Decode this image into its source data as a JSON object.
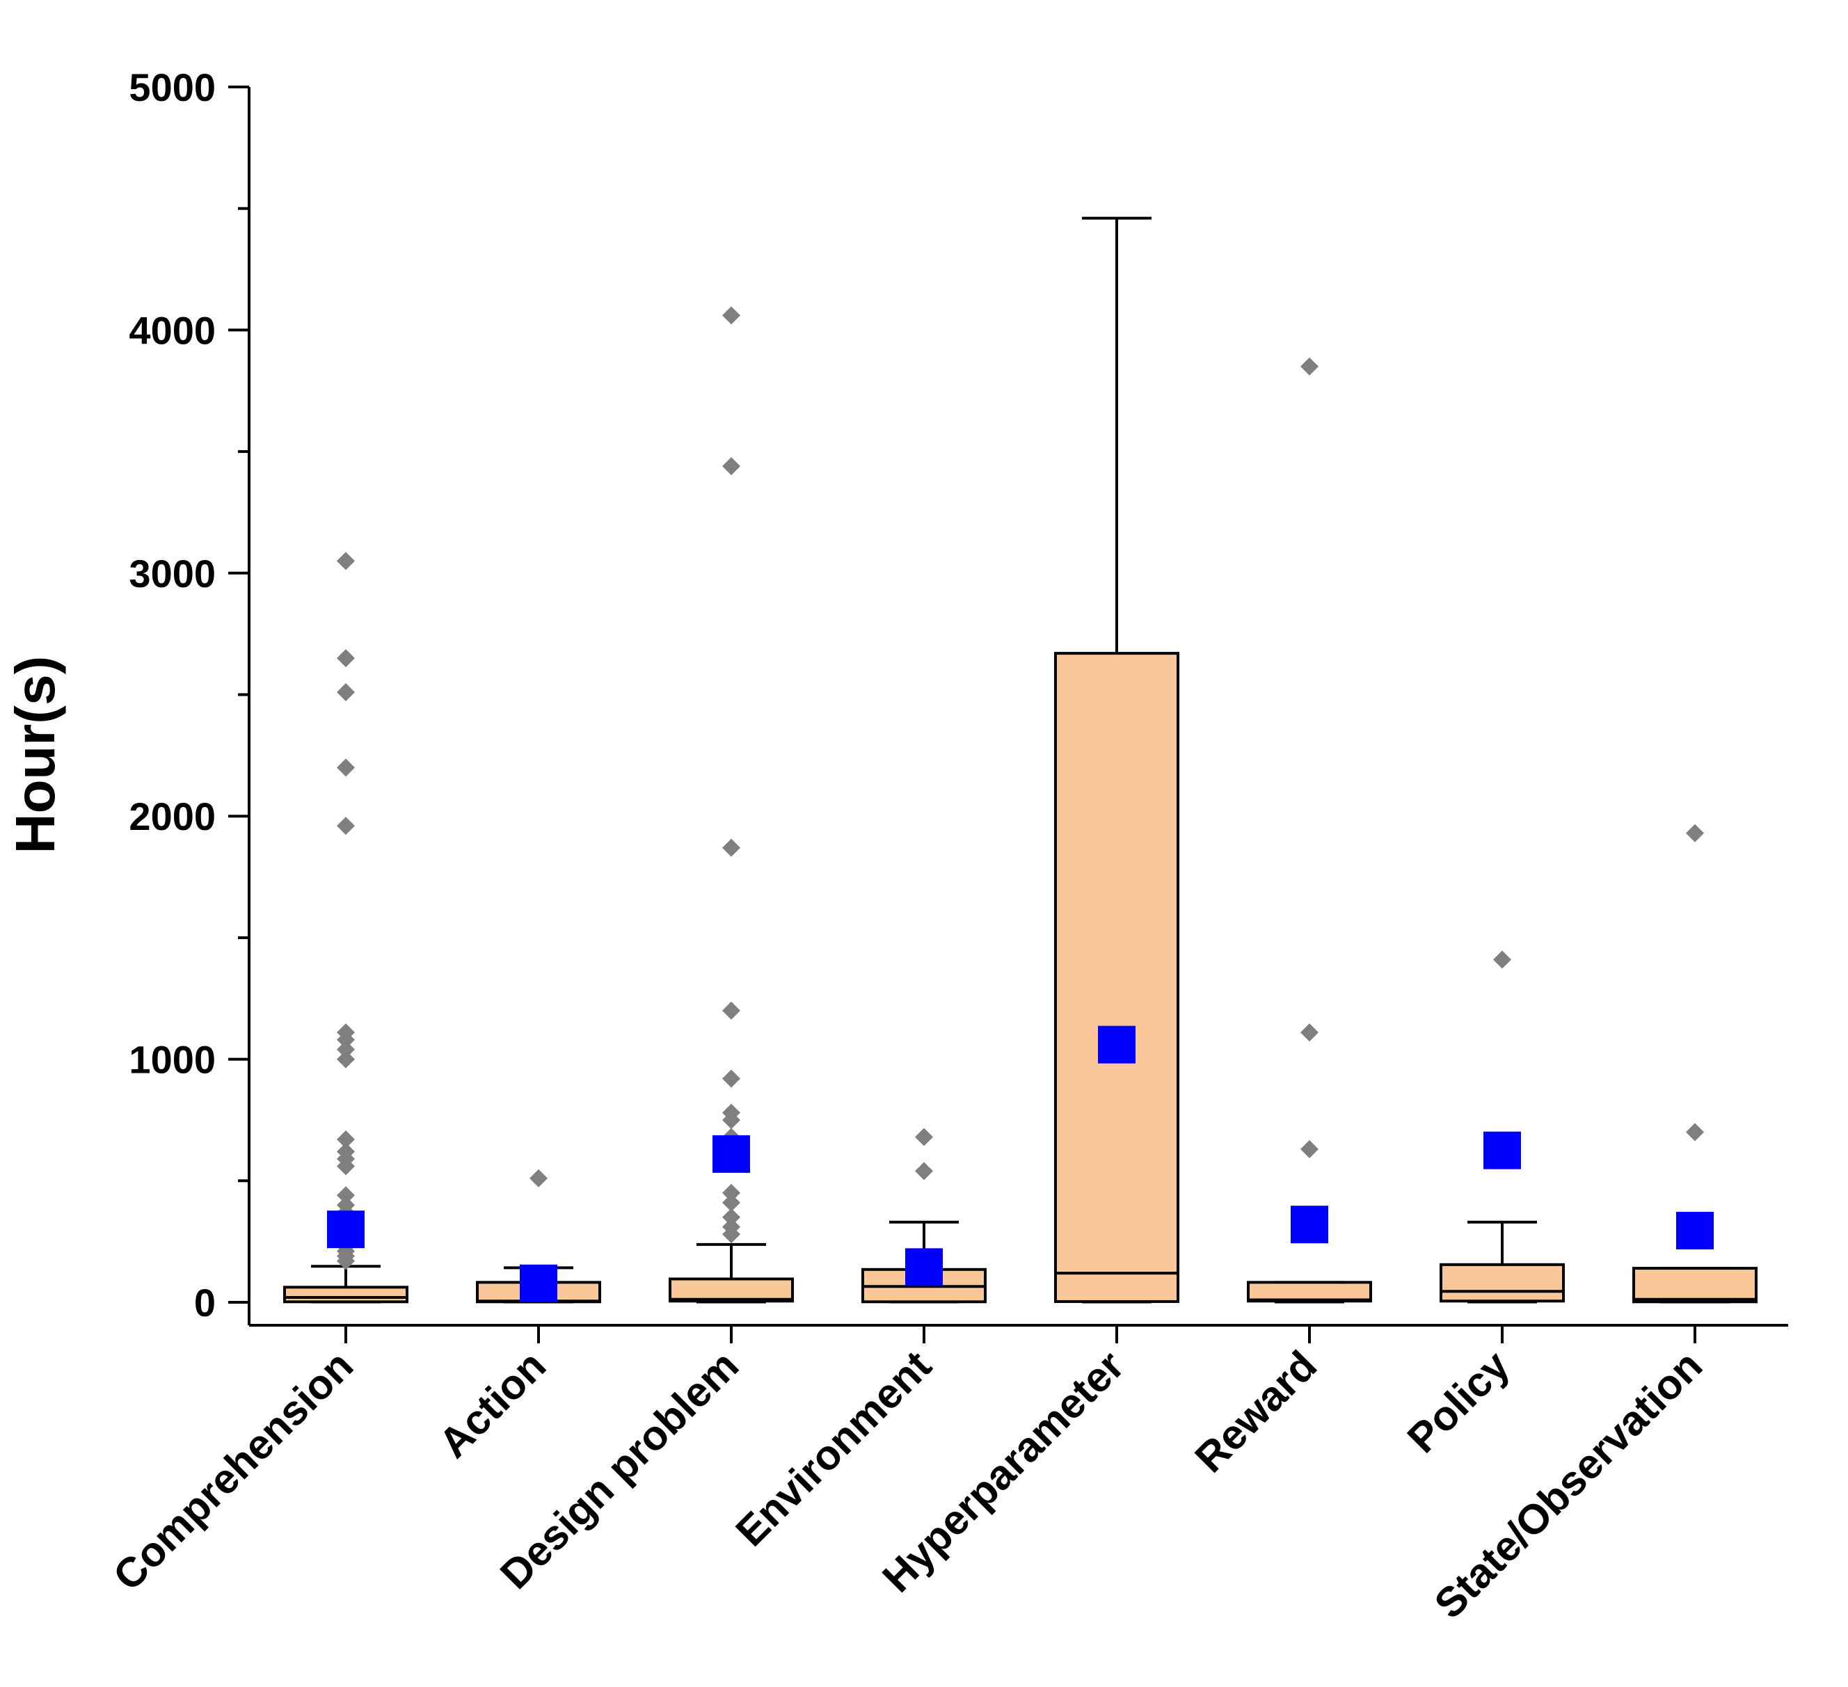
{
  "chart_data": {
    "type": "box",
    "title": "",
    "xlabel": "",
    "ylabel": "Hour(s)",
    "ylim": [
      0,
      5000
    ],
    "y_ticks": [
      0,
      1000,
      2000,
      3000,
      4000,
      5000
    ],
    "y_minor_step": 500,
    "grid": false,
    "categories": [
      "Comprehension",
      "Action",
      "Design problem",
      "Environment",
      "Hyperparameter",
      "Reward",
      "Policy",
      "State/Observation"
    ],
    "series": [
      {
        "name": "Comprehension",
        "min": 0,
        "q1": 2,
        "median": 20,
        "q3": 62,
        "whisker_high": 148,
        "mean": 300,
        "outliers": [
          3050,
          2650,
          2510,
          2200,
          1960,
          1110,
          1080,
          1040,
          1000,
          670,
          620,
          590,
          560,
          440,
          400,
          370,
          340,
          320,
          290,
          270,
          250,
          230,
          210,
          190,
          170
        ]
      },
      {
        "name": "Action",
        "min": 0,
        "q1": 2,
        "median": 5,
        "q3": 82,
        "whisker_high": 142,
        "mean": 78,
        "outliers": [
          510
        ]
      },
      {
        "name": "Design problem",
        "min": 0,
        "q1": 5,
        "median": 12,
        "q3": 96,
        "whisker_high": 238,
        "mean": 610,
        "outliers": [
          4060,
          3440,
          1870,
          1200,
          920,
          780,
          750,
          680,
          640,
          610,
          450,
          410,
          350,
          310,
          280
        ]
      },
      {
        "name": "Environment",
        "min": 0,
        "q1": 2,
        "median": 65,
        "q3": 135,
        "whisker_high": 330,
        "mean": 145,
        "outliers": [
          680,
          540
        ]
      },
      {
        "name": "Hyperparameter",
        "min": 0,
        "q1": 3,
        "median": 120,
        "q3": 2670,
        "whisker_high": 4460,
        "mean": 1060,
        "outliers": []
      },
      {
        "name": "Reward",
        "min": 0,
        "q1": 5,
        "median": 10,
        "q3": 82,
        "whisker_high": 82,
        "mean": 320,
        "outliers": [
          3850,
          1110,
          630,
          350
        ]
      },
      {
        "name": "Policy",
        "min": 0,
        "q1": 5,
        "median": 45,
        "q3": 155,
        "whisker_high": 330,
        "mean": 625,
        "outliers": [
          1410
        ]
      },
      {
        "name": "State/Observation",
        "min": 0,
        "q1": 2,
        "median": 12,
        "q3": 140,
        "whisker_high": 140,
        "mean": 295,
        "outliers": [
          1930,
          700
        ]
      }
    ],
    "colors": {
      "box_fill": "#fac898",
      "box_stroke": "#000000",
      "mean_marker": "#0000ff",
      "outlier_marker": "#7f7f7f"
    }
  }
}
